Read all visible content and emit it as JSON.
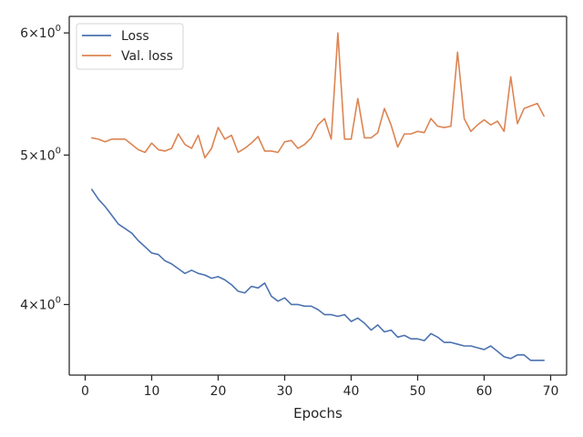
{
  "chart_data": {
    "type": "line",
    "title": "",
    "xlabel": "Epochs",
    "ylabel": "",
    "yscale": "log",
    "xlim": [
      -2.4,
      72.4
    ],
    "ylim": [
      3.6,
      6.15
    ],
    "grid": false,
    "legend_position": "upper-left",
    "x_ticks": [
      0,
      10,
      20,
      30,
      40,
      50,
      60,
      70
    ],
    "y_ticks": [
      {
        "value": 4,
        "base": "4",
        "exp": "0"
      },
      {
        "value": 5,
        "base": "5",
        "exp": "0"
      },
      {
        "value": 6,
        "base": "6",
        "exp": "0"
      }
    ],
    "x": [
      1,
      2,
      3,
      4,
      5,
      6,
      7,
      8,
      9,
      10,
      11,
      12,
      13,
      14,
      15,
      16,
      17,
      18,
      19,
      20,
      21,
      22,
      23,
      24,
      25,
      26,
      27,
      28,
      29,
      30,
      31,
      32,
      33,
      34,
      35,
      36,
      37,
      38,
      39,
      40,
      41,
      42,
      43,
      44,
      45,
      46,
      47,
      48,
      49,
      50,
      51,
      52,
      53,
      54,
      55,
      56,
      57,
      58,
      59,
      60,
      61,
      62,
      63,
      64,
      65,
      66,
      67,
      68,
      69
    ],
    "series": [
      {
        "name": "Loss",
        "color": "#4c72b0",
        "values": [
          4.75,
          4.68,
          4.63,
          4.57,
          4.51,
          4.48,
          4.45,
          4.4,
          4.36,
          4.32,
          4.31,
          4.27,
          4.25,
          4.22,
          4.19,
          4.21,
          4.19,
          4.18,
          4.16,
          4.17,
          4.15,
          4.12,
          4.08,
          4.07,
          4.11,
          4.1,
          4.13,
          4.05,
          4.02,
          4.04,
          4.0,
          4.0,
          3.99,
          3.99,
          3.97,
          3.94,
          3.94,
          3.93,
          3.94,
          3.9,
          3.92,
          3.89,
          3.85,
          3.88,
          3.84,
          3.85,
          3.81,
          3.82,
          3.8,
          3.8,
          3.79,
          3.83,
          3.81,
          3.78,
          3.78,
          3.77,
          3.76,
          3.76,
          3.75,
          3.74,
          3.76,
          3.73,
          3.7,
          3.69,
          3.71,
          3.71,
          3.68,
          3.68,
          3.68
        ]
      },
      {
        "name": "Val. loss",
        "color": "#dd8452",
        "values": [
          5.13,
          5.12,
          5.1,
          5.12,
          5.12,
          5.12,
          5.08,
          5.04,
          5.02,
          5.09,
          5.04,
          5.03,
          5.05,
          5.16,
          5.08,
          5.05,
          5.15,
          4.98,
          5.05,
          5.21,
          5.12,
          5.15,
          5.02,
          5.05,
          5.09,
          5.14,
          5.03,
          5.03,
          5.02,
          5.1,
          5.11,
          5.05,
          5.08,
          5.13,
          5.23,
          5.28,
          5.12,
          6.0,
          5.12,
          5.12,
          5.44,
          5.13,
          5.13,
          5.17,
          5.36,
          5.23,
          5.06,
          5.16,
          5.16,
          5.18,
          5.17,
          5.28,
          5.22,
          5.21,
          5.22,
          5.83,
          5.28,
          5.18,
          5.23,
          5.27,
          5.23,
          5.26,
          5.18,
          5.62,
          5.24,
          5.36,
          5.38,
          5.4,
          5.3
        ]
      }
    ]
  }
}
